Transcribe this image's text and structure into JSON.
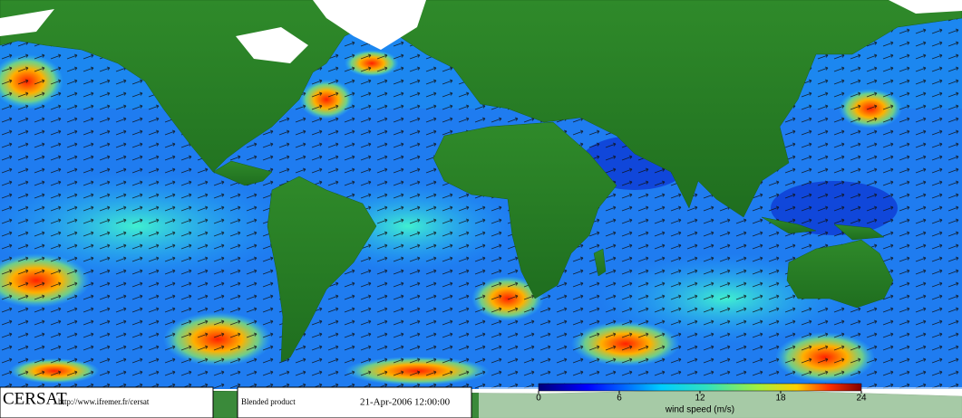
{
  "footer": {
    "logo": "CERSAT",
    "url": "http://www.ifremer.fr/cersat",
    "product": "Blended product",
    "date": "21-Apr-2006 12:00:00"
  },
  "colorbar": {
    "label": "wind speed (m/s)",
    "range": [
      0,
      24
    ],
    "ticks": [
      0,
      6,
      12,
      18,
      24
    ]
  }
}
